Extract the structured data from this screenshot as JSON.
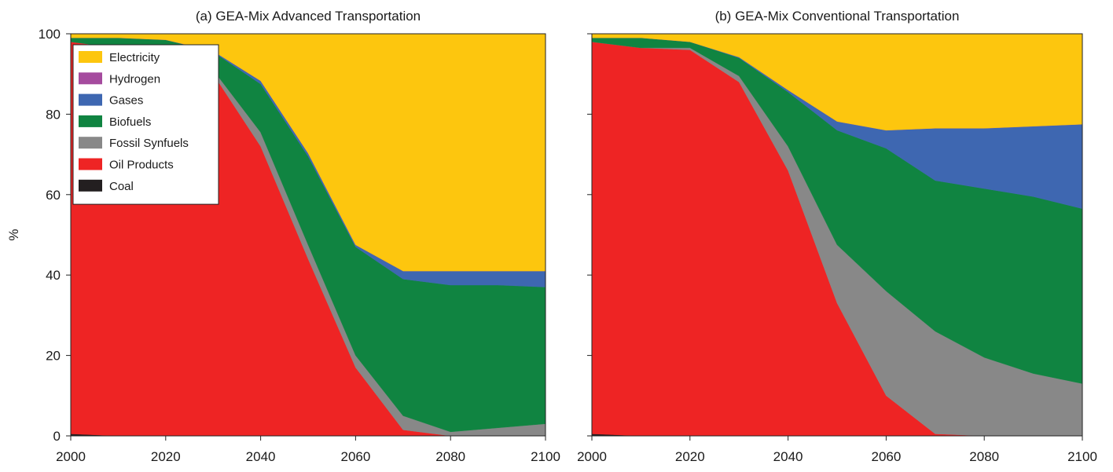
{
  "chart_data": [
    {
      "type": "area",
      "stacked": true,
      "title": "(a) GEA-Mix Advanced Transportation",
      "xlabel": "",
      "ylabel": "%",
      "xlim": [
        2000,
        2100
      ],
      "ylim": [
        0,
        100
      ],
      "x_ticks": [
        2000,
        2020,
        2040,
        2060,
        2080,
        2100
      ],
      "y_ticks": [
        0,
        20,
        40,
        60,
        80,
        100
      ],
      "grid": false,
      "legend": "top-left",
      "x": [
        2000,
        2010,
        2020,
        2030,
        2040,
        2050,
        2060,
        2070,
        2080,
        2090,
        2100
      ],
      "series": [
        {
          "name": "Coal",
          "color": "#231f20",
          "values": [
            0.5,
            0,
            0,
            0,
            0,
            0,
            0,
            0,
            0,
            0,
            0
          ]
        },
        {
          "name": "Oil Products",
          "color": "#ee2424",
          "values": [
            97.5,
            96.5,
            96,
            90,
            72,
            44,
            17,
            1.5,
            0,
            0,
            0
          ]
        },
        {
          "name": "Fossil Synfuels",
          "color": "#888888",
          "values": [
            0,
            0,
            0,
            1,
            3.5,
            3.5,
            3,
            3.5,
            1,
            2,
            3
          ]
        },
        {
          "name": "Biofuels",
          "color": "#108441",
          "values": [
            1,
            2.5,
            2.5,
            4.5,
            12,
            22,
            27,
            34,
            36.5,
            35.5,
            34
          ]
        },
        {
          "name": "Gases",
          "color": "#3e67b1",
          "values": [
            0,
            0,
            0,
            0.2,
            0.8,
            0.8,
            0.5,
            2,
            3.5,
            3.5,
            4
          ]
        },
        {
          "name": "Hydrogen",
          "color": "#a54b9e",
          "values": [
            0,
            0,
            0,
            0,
            0,
            0,
            0,
            0,
            0,
            0,
            0
          ]
        },
        {
          "name": "Electricity",
          "color": "#fdc60e",
          "values": [
            1,
            1,
            1.5,
            4.3,
            11.7,
            29.7,
            52.5,
            59,
            59,
            59,
            59
          ]
        }
      ]
    },
    {
      "type": "area",
      "stacked": true,
      "title": "(b) GEA-Mix Conventional Transportation",
      "xlabel": "",
      "ylabel": "",
      "xlim": [
        2000,
        2100
      ],
      "ylim": [
        0,
        100
      ],
      "x_ticks": [
        2000,
        2020,
        2040,
        2060,
        2080,
        2100
      ],
      "y_ticks": [
        0,
        20,
        40,
        60,
        80,
        100
      ],
      "grid": false,
      "x": [
        2000,
        2010,
        2020,
        2030,
        2040,
        2050,
        2060,
        2070,
        2080,
        2090,
        2100
      ],
      "series": [
        {
          "name": "Coal",
          "color": "#231f20",
          "values": [
            0.5,
            0,
            0,
            0,
            0,
            0,
            0,
            0,
            0,
            0,
            0
          ]
        },
        {
          "name": "Oil Products",
          "color": "#ee2424",
          "values": [
            97.5,
            96.5,
            96,
            88,
            66,
            33,
            10,
            0.5,
            0,
            0,
            0
          ]
        },
        {
          "name": "Fossil Synfuels",
          "color": "#888888",
          "values": [
            0,
            0,
            0.5,
            1.5,
            6,
            14.5,
            26,
            25.5,
            19.5,
            15.5,
            13
          ]
        },
        {
          "name": "Biofuels",
          "color": "#108441",
          "values": [
            1,
            2.5,
            1.5,
            4.5,
            13.5,
            28.5,
            35.5,
            37.5,
            42,
            44,
            43.5
          ]
        },
        {
          "name": "Gases",
          "color": "#3e67b1",
          "values": [
            0,
            0,
            0,
            0.2,
            0.5,
            2.2,
            4.5,
            13,
            15,
            17.5,
            21
          ]
        },
        {
          "name": "Hydrogen",
          "color": "#a54b9e",
          "values": [
            0,
            0,
            0,
            0,
            0,
            0,
            0,
            0,
            0,
            0,
            0
          ]
        },
        {
          "name": "Electricity",
          "color": "#fdc60e",
          "values": [
            1,
            1,
            2,
            5.8,
            14,
            21.8,
            24,
            23.5,
            23.5,
            23,
            22.5
          ]
        }
      ]
    }
  ]
}
